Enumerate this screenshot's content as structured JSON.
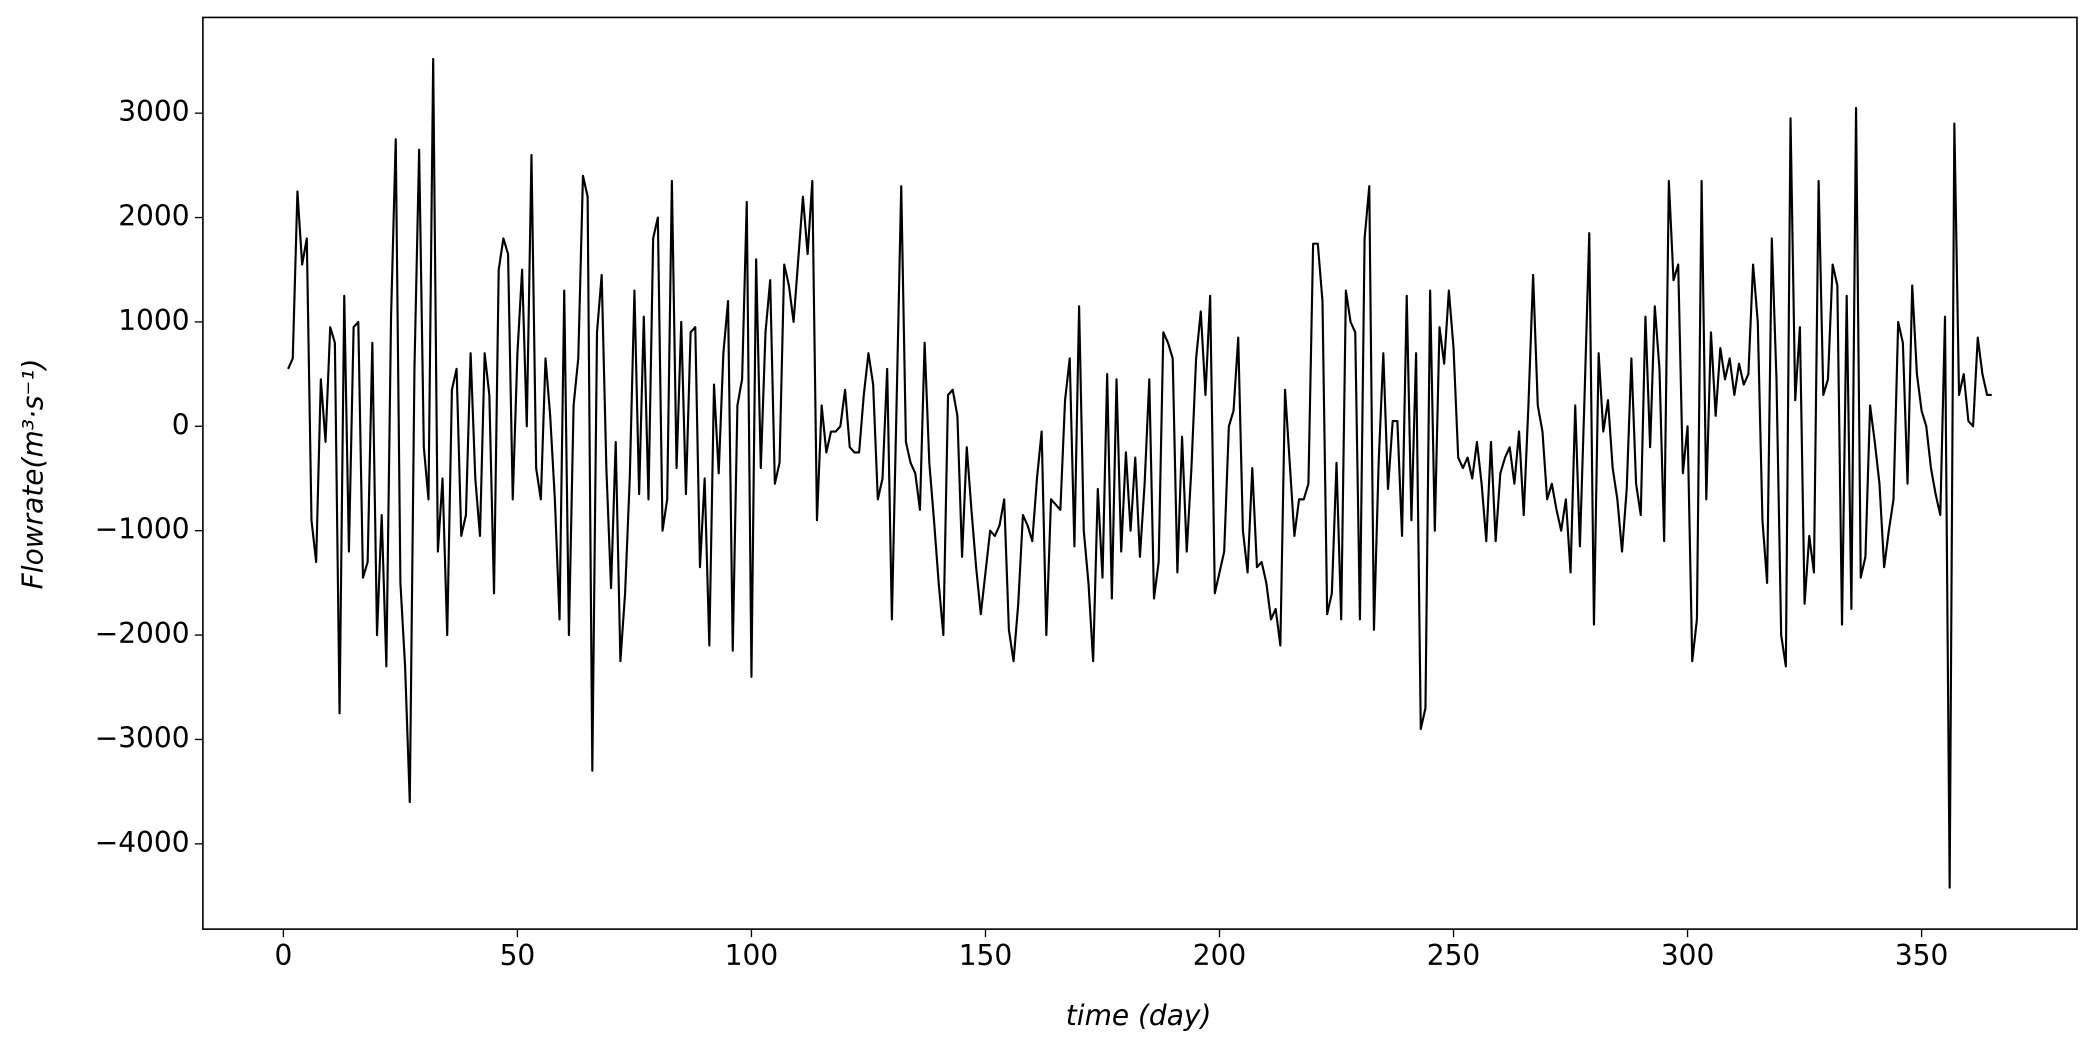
{
  "chart_data": {
    "type": "line",
    "xlabel": "time (day)",
    "ylabel": "Flowrate(m³·s⁻¹)",
    "x": [
      1,
      2,
      3,
      4,
      5,
      6,
      7,
      8,
      9,
      10,
      11,
      12,
      13,
      14,
      15,
      16,
      17,
      18,
      19,
      20,
      21,
      22,
      23,
      24,
      25,
      26,
      27,
      28,
      29,
      30,
      31,
      32,
      33,
      34,
      35,
      36,
      37,
      38,
      39,
      40,
      41,
      42,
      43,
      44,
      45,
      46,
      47,
      48,
      49,
      50,
      51,
      52,
      53,
      54,
      55,
      56,
      57,
      58,
      59,
      60,
      61,
      62,
      63,
      64,
      65,
      66,
      67,
      68,
      69,
      70,
      71,
      72,
      73,
      74,
      75,
      76,
      77,
      78,
      79,
      80,
      81,
      82,
      83,
      84,
      85,
      86,
      87,
      88,
      89,
      90,
      91,
      92,
      93,
      94,
      95,
      96,
      97,
      98,
      99,
      100,
      101,
      102,
      103,
      104,
      105,
      106,
      107,
      108,
      109,
      110,
      111,
      112,
      113,
      114,
      115,
      116,
      117,
      118,
      119,
      120,
      121,
      122,
      123,
      124,
      125,
      126,
      127,
      128,
      129,
      130,
      131,
      132,
      133,
      134,
      135,
      136,
      137,
      138,
      139,
      140,
      141,
      142,
      143,
      144,
      145,
      146,
      147,
      148,
      149,
      150,
      151,
      152,
      153,
      154,
      155,
      156,
      157,
      158,
      159,
      160,
      161,
      162,
      163,
      164,
      165,
      166,
      167,
      168,
      169,
      170,
      171,
      172,
      173,
      174,
      175,
      176,
      177,
      178,
      179,
      180,
      181,
      182,
      183,
      184,
      185,
      186,
      187,
      188,
      189,
      190,
      191,
      192,
      193,
      194,
      195,
      196,
      197,
      198,
      199,
      200,
      201,
      202,
      203,
      204,
      205,
      206,
      207,
      208,
      209,
      210,
      211,
      212,
      213,
      214,
      215,
      216,
      217,
      218,
      219,
      220,
      221,
      222,
      223,
      224,
      225,
      226,
      227,
      228,
      229,
      230,
      231,
      232,
      233,
      234,
      235,
      236,
      237,
      238,
      239,
      240,
      241,
      242,
      243,
      244,
      245,
      246,
      247,
      248,
      249,
      250,
      251,
      252,
      253,
      254,
      255,
      256,
      257,
      258,
      259,
      260,
      261,
      262,
      263,
      264,
      265,
      266,
      267,
      268,
      269,
      270,
      271,
      272,
      273,
      274,
      275,
      276,
      277,
      278,
      279,
      280,
      281,
      282,
      283,
      284,
      285,
      286,
      287,
      288,
      289,
      290,
      291,
      292,
      293,
      294,
      295,
      296,
      297,
      298,
      299,
      300,
      301,
      302,
      303,
      304,
      305,
      306,
      307,
      308,
      309,
      310,
      311,
      312,
      313,
      314,
      315,
      316,
      317,
      318,
      319,
      320,
      321,
      322,
      323,
      324,
      325,
      326,
      327,
      328,
      329,
      330,
      331,
      332,
      333,
      334,
      335,
      336,
      337,
      338,
      339,
      340,
      341,
      342,
      343,
      344,
      345,
      346,
      347,
      348,
      349,
      350,
      351,
      352,
      353,
      354,
      355,
      356,
      357,
      358,
      359,
      360,
      361,
      362,
      363,
      364,
      365
    ],
    "series": [
      {
        "color": "#000000",
        "values": [
          550,
          650,
          2250,
          1550,
          1800,
          -900,
          -1300,
          450,
          -150,
          950,
          800,
          -2750,
          1250,
          -1200,
          950,
          1000,
          -1450,
          -1300,
          800,
          -2000,
          -850,
          -2300,
          1050,
          2750,
          -1500,
          -2300,
          -3600,
          550,
          2650,
          -200,
          -700,
          3520,
          -1200,
          -500,
          -2000,
          350,
          550,
          -1050,
          -850,
          700,
          -500,
          -1050,
          700,
          300,
          -1600,
          1500,
          1800,
          1650,
          -700,
          700,
          1500,
          0,
          2600,
          -400,
          -700,
          650,
          100,
          -700,
          -1850,
          1300,
          -2000,
          200,
          650,
          2400,
          2200,
          -3300,
          900,
          1450,
          -400,
          -1550,
          -150,
          -2250,
          -1600,
          -500,
          1300,
          -650,
          1050,
          -700,
          1800,
          2000,
          -1000,
          -700,
          2350,
          -400,
          1000,
          -650,
          900,
          950,
          -1350,
          -500,
          -2100,
          400,
          -450,
          700,
          1200,
          -2150,
          200,
          450,
          2150,
          -2400,
          1600,
          -400,
          900,
          1400,
          -550,
          -350,
          1550,
          1350,
          1000,
          1600,
          2200,
          1650,
          2350,
          -900,
          200,
          -250,
          -50,
          -50,
          0,
          350,
          -200,
          -250,
          -250,
          300,
          700,
          400,
          -700,
          -500,
          550,
          -1850,
          200,
          2300,
          -150,
          -350,
          -450,
          -800,
          800,
          -350,
          -900,
          -1500,
          -2000,
          300,
          350,
          100,
          -1250,
          -200,
          -800,
          -1350,
          -1800,
          -1400,
          -1000,
          -1050,
          -950,
          -700,
          -1950,
          -2250,
          -1700,
          -850,
          -950,
          -1100,
          -500,
          -50,
          -2000,
          -700,
          -750,
          -800,
          250,
          650,
          -1150,
          1150,
          -1000,
          -1500,
          -2250,
          -600,
          -1450,
          500,
          -1650,
          450,
          -1200,
          -250,
          -1000,
          -300,
          -1250,
          -550,
          450,
          -1650,
          -1300,
          900,
          800,
          650,
          -1400,
          -100,
          -1200,
          -400,
          650,
          1100,
          300,
          1250,
          -1600,
          -1400,
          -1200,
          0,
          150,
          850,
          -1000,
          -1400,
          -400,
          -1350,
          -1300,
          -1500,
          -1850,
          -1750,
          -2100,
          350,
          -350,
          -1050,
          -700,
          -700,
          -550,
          1750,
          1750,
          1200,
          -1800,
          -1600,
          -350,
          -1850,
          1300,
          1000,
          900,
          -1850,
          1800,
          2300,
          -1950,
          -350,
          700,
          -600,
          50,
          50,
          -1050,
          1250,
          -900,
          700,
          -2900,
          -2700,
          1300,
          -1000,
          950,
          600,
          1300,
          750,
          -300,
          -400,
          -300,
          -500,
          -150,
          -550,
          -1100,
          -150,
          -1100,
          -450,
          -300,
          -200,
          -550,
          -50,
          -850,
          200,
          1450,
          200,
          -50,
          -700,
          -550,
          -800,
          -1000,
          -700,
          -1400,
          200,
          -1150,
          300,
          1850,
          -1900,
          700,
          -50,
          250,
          -400,
          -700,
          -1200,
          -600,
          650,
          -550,
          -850,
          1050,
          -200,
          1150,
          550,
          -1100,
          2350,
          1400,
          1550,
          -450,
          0,
          -2250,
          -1850,
          2350,
          -700,
          900,
          100,
          750,
          450,
          650,
          300,
          600,
          400,
          500,
          1550,
          1000,
          -900,
          -1500,
          1800,
          450,
          -2000,
          -2300,
          2950,
          250,
          950,
          -1700,
          -1050,
          -1400,
          2350,
          300,
          450,
          1550,
          1350,
          -1900,
          1250,
          -1750,
          3050,
          -1450,
          -1250,
          200,
          -150,
          -550,
          -1350,
          -1000,
          -700,
          1000,
          800,
          -550,
          1350,
          500,
          150,
          0,
          -400,
          -650,
          -850,
          1050,
          -4420,
          2900,
          300,
          500,
          50,
          0,
          850,
          500,
          300,
          300
        ]
      }
    ],
    "xlim": [
      -17.2,
      383.2
    ],
    "ylim": [
      -4817,
      3917
    ],
    "xticks": [
      0,
      50,
      100,
      150,
      200,
      250,
      300,
      350
    ],
    "yticks": [
      {
        "value": -4000,
        "label": "−4000"
      },
      {
        "value": -3000,
        "label": "−3000"
      },
      {
        "value": -2000,
        "label": "−2000"
      },
      {
        "value": -1000,
        "label": "−1000"
      },
      0,
      1000,
      2000,
      3000
    ]
  }
}
